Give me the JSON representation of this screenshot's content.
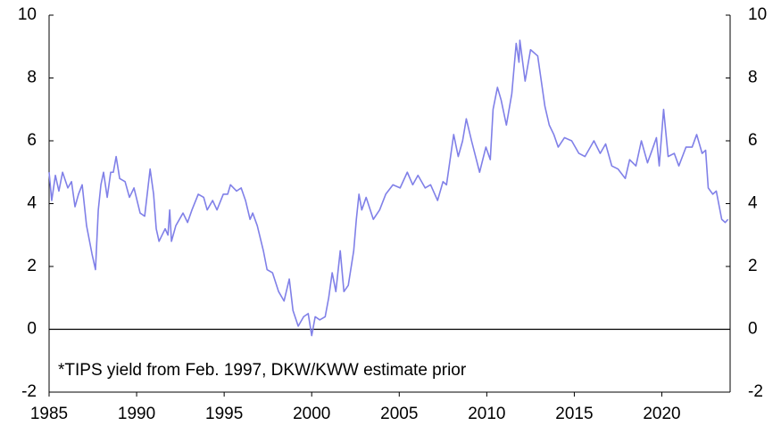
{
  "chart_data": {
    "type": "line",
    "annotation": "*TIPS yield from Feb. 1997, DKW/KWW estimate prior",
    "x": [
      1985.0,
      1985.15,
      1985.36,
      1985.56,
      1985.77,
      1986.07,
      1986.28,
      1986.48,
      1986.68,
      1986.89,
      1987.14,
      1987.45,
      1987.65,
      1987.81,
      1987.96,
      1988.11,
      1988.32,
      1988.52,
      1988.67,
      1988.83,
      1989.03,
      1989.34,
      1989.59,
      1989.85,
      1990.2,
      1990.46,
      1990.77,
      1990.97,
      1991.12,
      1991.28,
      1991.63,
      1991.79,
      1991.89,
      1991.99,
      1992.24,
      1992.65,
      1992.91,
      1993.16,
      1993.52,
      1993.83,
      1994.03,
      1994.34,
      1994.59,
      1994.95,
      1995.2,
      1995.36,
      1995.71,
      1995.97,
      1996.22,
      1996.48,
      1996.63,
      1996.89,
      1997.24,
      1997.45,
      1997.76,
      1998.11,
      1998.42,
      1998.72,
      1998.93,
      1999.23,
      1999.54,
      1999.8,
      2000.0,
      2000.2,
      2000.46,
      2000.77,
      2000.97,
      2001.17,
      2001.38,
      2001.63,
      2001.84,
      2002.09,
      2002.4,
      2002.55,
      2002.7,
      2002.86,
      2003.11,
      2003.52,
      2003.88,
      2004.23,
      2004.64,
      2005.05,
      2005.46,
      2005.77,
      2006.07,
      2006.48,
      2006.79,
      2007.19,
      2007.5,
      2007.7,
      2008.11,
      2008.37,
      2008.62,
      2008.83,
      2009.13,
      2009.59,
      2009.95,
      2010.2,
      2010.36,
      2010.61,
      2010.82,
      2011.12,
      2011.43,
      2011.68,
      2011.84,
      2011.89,
      2012.19,
      2012.5,
      2012.91,
      2013.32,
      2013.57,
      2013.83,
      2014.08,
      2014.44,
      2014.85,
      2015.26,
      2015.61,
      2016.12,
      2016.48,
      2016.79,
      2017.14,
      2017.5,
      2017.91,
      2018.16,
      2018.52,
      2018.83,
      2019.18,
      2019.44,
      2019.69,
      2019.85,
      2020.1,
      2020.36,
      2020.71,
      2020.97,
      2021.38,
      2021.73,
      2021.99,
      2022.3,
      2022.5,
      2022.65,
      2022.91,
      2023.11,
      2023.42,
      2023.62,
      2023.78
    ],
    "series": [
      {
        "color": "#8080e8",
        "values": [
          5.0,
          4.1,
          4.9,
          4.4,
          5.0,
          4.5,
          4.7,
          3.9,
          4.3,
          4.6,
          3.3,
          2.4,
          1.9,
          3.8,
          4.6,
          5.0,
          4.2,
          5.0,
          5.0,
          5.5,
          4.8,
          4.7,
          4.2,
          4.5,
          3.7,
          3.6,
          5.1,
          4.3,
          3.2,
          2.8,
          3.2,
          3.0,
          3.8,
          2.8,
          3.3,
          3.7,
          3.4,
          3.8,
          4.3,
          4.2,
          3.8,
          4.1,
          3.8,
          4.3,
          4.3,
          4.6,
          4.4,
          4.5,
          4.1,
          3.5,
          3.7,
          3.3,
          2.5,
          1.9,
          1.8,
          1.2,
          0.9,
          1.6,
          0.6,
          0.1,
          0.4,
          0.5,
          -0.2,
          0.4,
          0.3,
          0.4,
          1.0,
          1.8,
          1.2,
          2.5,
          1.2,
          1.4,
          2.5,
          3.5,
          4.3,
          3.8,
          4.2,
          3.5,
          3.8,
          4.3,
          4.6,
          4.5,
          5.0,
          4.6,
          4.9,
          4.5,
          4.6,
          4.1,
          4.7,
          4.6,
          6.2,
          5.5,
          6.0,
          6.7,
          6.0,
          5.0,
          5.8,
          5.4,
          7.0,
          7.7,
          7.3,
          6.5,
          7.5,
          9.1,
          8.5,
          9.2,
          7.9,
          8.9,
          8.7,
          7.1,
          6.5,
          6.2,
          5.8,
          6.1,
          6.0,
          5.6,
          5.5,
          6.0,
          5.6,
          5.9,
          5.2,
          5.1,
          4.8,
          5.4,
          5.2,
          6.0,
          5.3,
          5.7,
          6.1,
          5.2,
          7.0,
          5.5,
          5.6,
          5.2,
          5.8,
          5.8,
          6.2,
          5.6,
          5.7,
          4.5,
          4.3,
          4.4,
          3.5,
          3.4,
          3.5
        ]
      }
    ],
    "xlim": [
      1985,
      2023.9
    ],
    "xticks": [
      1985,
      1990,
      1995,
      2000,
      2005,
      2010,
      2015,
      2020
    ],
    "ylim": [
      -2,
      10
    ],
    "yticks": [
      -2,
      0,
      2,
      4,
      6,
      8,
      10
    ],
    "y2lim": [
      -2,
      10
    ],
    "y2ticks": [
      -2,
      0,
      2,
      4,
      6,
      8,
      10
    ],
    "zero_line": true
  }
}
